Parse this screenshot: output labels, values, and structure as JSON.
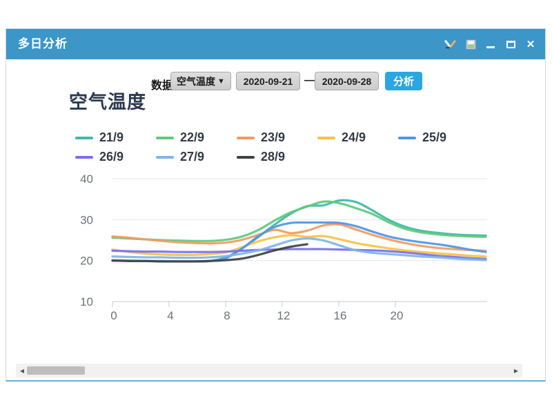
{
  "window": {
    "title": "多日分析"
  },
  "controls": {
    "data_label": "数据",
    "dataset_value": "空气温度",
    "dropdown_caret": "▼",
    "date_from": "2020-09-21",
    "range_separator": "—",
    "date_to": "2020-09-28",
    "analyze_label": "分析"
  },
  "scrollbar": {
    "left_arrow": "◀",
    "right_arrow": "▶"
  },
  "colors": {
    "titlebar": "#3c96c8",
    "analyze_button": "#2aa7e1",
    "chart_title_text": "#2b3950",
    "gridline": "#e5e6ea",
    "axis_text": "#6d727c"
  },
  "chart_data": {
    "type": "line",
    "title": "空气温度",
    "xlabel": "",
    "ylabel": "",
    "x_range": [
      0,
      23
    ],
    "x_ticks": [
      0,
      4,
      8,
      12,
      16,
      20
    ],
    "y_ticks": [
      10,
      20,
      30,
      40
    ],
    "ylim": [
      10,
      40
    ],
    "grid": "horizontal gridlines only",
    "legend_position": "top",
    "series": [
      {
        "name": "21/9",
        "color": "#41b9a5",
        "values": [
          20.1,
          20.0,
          19.9,
          19.9,
          19.8,
          19.8,
          19.9,
          20.8,
          23.0,
          25.8,
          28.8,
          31.5,
          33.3,
          33.5,
          34.7,
          34.3,
          32.3,
          30.0,
          28.3,
          27.3,
          26.8,
          26.4,
          26.2,
          26.1
        ]
      },
      {
        "name": "22/9",
        "color": "#5ec97e",
        "values": [
          25.6,
          25.4,
          25.2,
          25.0,
          24.9,
          24.8,
          24.8,
          25.1,
          25.9,
          27.5,
          29.8,
          31.8,
          33.2,
          34.4,
          34.0,
          32.8,
          31.4,
          29.4,
          27.8,
          26.9,
          26.4,
          26.1,
          25.9,
          25.8
        ]
      },
      {
        "name": "23/9",
        "color": "#f29b61",
        "values": [
          25.9,
          25.6,
          25.2,
          24.8,
          24.5,
          24.3,
          24.2,
          24.4,
          25.1,
          26.3,
          27.5,
          26.7,
          27.3,
          28.6,
          28.8,
          27.6,
          26.3,
          25.2,
          24.3,
          23.6,
          23.1,
          22.8,
          22.6,
          22.4
        ]
      },
      {
        "name": "24/9",
        "color": "#f6c344",
        "values": [
          22.7,
          22.1,
          21.7,
          21.5,
          21.4,
          21.4,
          21.6,
          22.0,
          23.3,
          24.7,
          25.7,
          26.2,
          25.8,
          26.0,
          25.2,
          24.3,
          23.6,
          23.0,
          22.5,
          22.1,
          21.8,
          21.5,
          21.2,
          21.0
        ]
      },
      {
        "name": "25/9",
        "color": "#4f96e8",
        "values": [
          20.0,
          19.9,
          19.9,
          19.8,
          19.8,
          19.8,
          19.9,
          20.6,
          23.0,
          26.0,
          28.2,
          29.2,
          29.3,
          29.3,
          29.2,
          28.4,
          27.1,
          25.9,
          25.1,
          24.5,
          24.0,
          23.4,
          22.7,
          22.1
        ]
      },
      {
        "name": "26/9",
        "color": "#7a6ff0",
        "values": [
          22.4,
          22.3,
          22.2,
          22.2,
          22.1,
          22.1,
          22.1,
          22.2,
          22.4,
          22.6,
          22.7,
          22.8,
          22.8,
          22.8,
          22.7,
          22.6,
          22.5,
          22.3,
          22.0,
          21.6,
          21.2,
          20.9,
          20.6,
          20.4
        ]
      },
      {
        "name": "27/9",
        "color": "#7fb5ea",
        "values": [
          21.0,
          20.9,
          20.8,
          20.8,
          20.7,
          20.7,
          20.8,
          21.1,
          21.7,
          22.5,
          23.7,
          24.9,
          25.4,
          24.9,
          23.7,
          22.5,
          21.9,
          21.6,
          21.3,
          21.0,
          20.8,
          20.5,
          20.3,
          20.1
        ]
      },
      {
        "name": "28/9",
        "color": "#3f4245",
        "values": [
          20.0,
          19.9,
          19.9,
          19.8,
          19.8,
          19.8,
          19.9,
          20.1,
          20.5,
          21.4,
          22.5,
          23.4,
          24.0
        ]
      }
    ]
  }
}
